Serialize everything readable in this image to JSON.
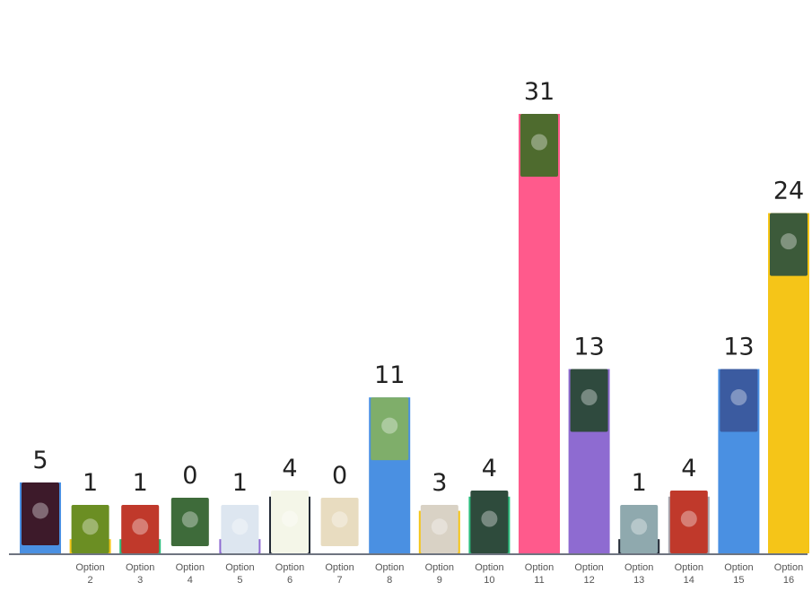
{
  "chart_data": {
    "type": "bar",
    "categories": [
      {
        "line1": "",
        "line2": ""
      },
      {
        "line1": "Option",
        "line2": "2"
      },
      {
        "line1": "Option",
        "line2": "3"
      },
      {
        "line1": "Option",
        "line2": "4"
      },
      {
        "line1": "Option",
        "line2": "5"
      },
      {
        "line1": "Option",
        "line2": "6"
      },
      {
        "line1": "Option",
        "line2": "7"
      },
      {
        "line1": "Option",
        "line2": "8"
      },
      {
        "line1": "Option",
        "line2": "9"
      },
      {
        "line1": "Option",
        "line2": "10"
      },
      {
        "line1": "Option",
        "line2": "11"
      },
      {
        "line1": "Option",
        "line2": "12"
      },
      {
        "line1": "Option",
        "line2": "13"
      },
      {
        "line1": "Option",
        "line2": "14"
      },
      {
        "line1": "Option",
        "line2": "15"
      },
      {
        "line1": "Option",
        "line2": "16"
      }
    ],
    "values": [
      5,
      1,
      1,
      0,
      1,
      4,
      0,
      11,
      3,
      4,
      31,
      13,
      1,
      4,
      13,
      24
    ],
    "colors": [
      "#4A90E2",
      "#F5C518",
      "#2DBE7E",
      "#2C3340",
      "#8E6BD1",
      "#232A36",
      "#F4F0EA",
      "#4A90E2",
      "#F5C518",
      "#2DBE7E",
      "#FF5A8C",
      "#8E6BD1",
      "#232A36",
      "#A9A9B1",
      "#4A90E2",
      "#F5C518"
    ],
    "thumbnail_colors": [
      "#3D1A2A",
      "#6B8E23",
      "#C0392B",
      "#3E6B3A",
      "#DDE6F0",
      "#F4F6E8",
      "#E8DCC0",
      "#7FAE6A",
      "#D9D2C5",
      "#2E4B3C",
      "#4E6B2E",
      "#2F4A3E",
      "#8FA9AE",
      "#C0392B",
      "#3B5BA0",
      "#3C5A3A"
    ],
    "bar_values_labeled": true,
    "grid": false,
    "legend": "none",
    "ylim": [
      0,
      31
    ],
    "title": "",
    "xlabel": "",
    "ylabel": ""
  }
}
